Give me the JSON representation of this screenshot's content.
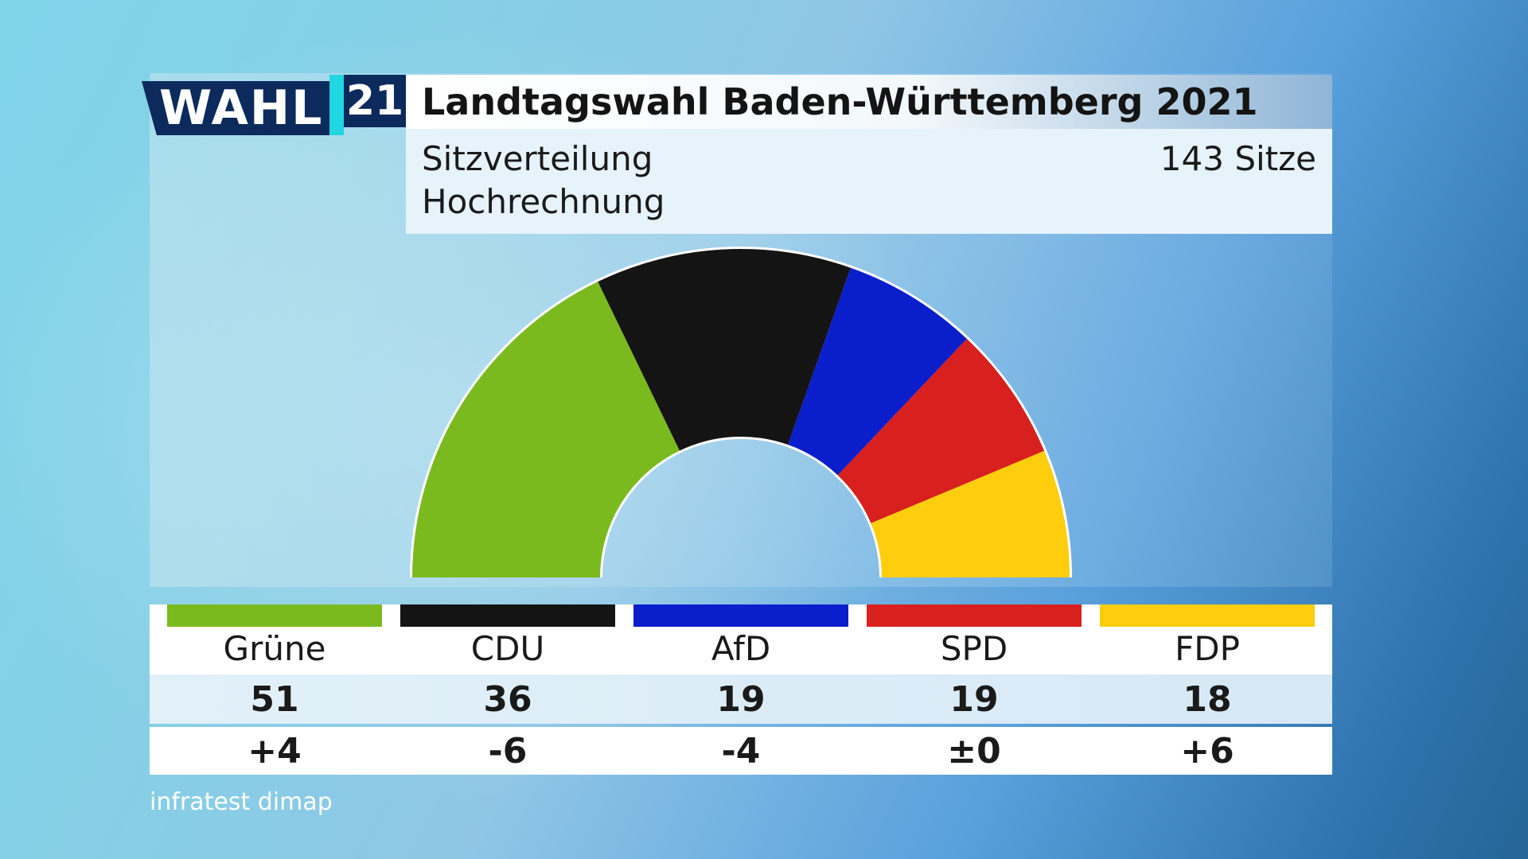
{
  "logo": {
    "wahl": "WAHL",
    "year": "21"
  },
  "header": {
    "title": "Landtagswahl Baden-Württemberg 2021",
    "subtitle_1": "Sitzverteilung",
    "subtitle_2": "Hochrechnung",
    "seats_total_label": "143 Sitze"
  },
  "source": "infratest dimap",
  "colors": {
    "gruene": "#7aba1e",
    "cdu": "#141414",
    "afd": "#0a1ecb",
    "spd": "#d8201e",
    "fdp": "#fecd0e"
  },
  "chart_data": {
    "type": "pie",
    "subtype": "semicircle-parliament",
    "total": 143,
    "categories": [
      "Grüne",
      "CDU",
      "AfD",
      "SPD",
      "FDP"
    ],
    "values": [
      51,
      36,
      19,
      19,
      18
    ],
    "changes": [
      "+4",
      "-6",
      "-4",
      "±0",
      "+6"
    ],
    "colors": [
      "#7aba1e",
      "#141414",
      "#0a1ecb",
      "#d8201e",
      "#fecd0e"
    ]
  },
  "table": {
    "parties": [
      {
        "name": "Grüne",
        "seats": "51",
        "change": "+4"
      },
      {
        "name": "CDU",
        "seats": "36",
        "change": "-6"
      },
      {
        "name": "AfD",
        "seats": "19",
        "change": "-4"
      },
      {
        "name": "SPD",
        "seats": "19",
        "change": "±0"
      },
      {
        "name": "FDP",
        "seats": "18",
        "change": "+6"
      }
    ]
  }
}
